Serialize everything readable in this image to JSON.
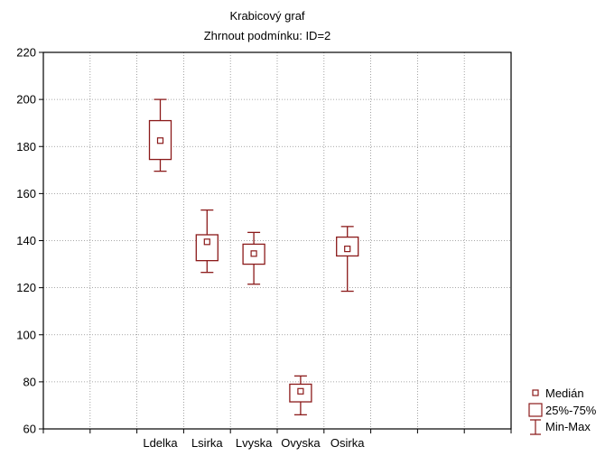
{
  "chart_data": {
    "type": "boxplot",
    "title": "Krabicový graf",
    "subtitle": "Zhrnout podmínku: ID=2",
    "xlabel": "",
    "ylabel": "",
    "ylim": [
      60,
      220
    ],
    "yticks": [
      60,
      80,
      100,
      120,
      140,
      160,
      180,
      200,
      220
    ],
    "grid": true,
    "categories": [
      "Ldelka",
      "Lsirka",
      "Lvyska",
      "Ovyska",
      "Osirka"
    ],
    "boxes": [
      {
        "category": "Ldelka",
        "min": 169.5,
        "q1": 174.5,
        "median": 182.5,
        "q3": 191,
        "max": 200
      },
      {
        "category": "Lsirka",
        "min": 126.5,
        "q1": 131.5,
        "median": 139.5,
        "q3": 142.5,
        "max": 153
      },
      {
        "category": "Lvyska",
        "min": 121.5,
        "q1": 130,
        "median": 134.5,
        "q3": 138.5,
        "max": 143.5
      },
      {
        "category": "Ovyska",
        "min": 66,
        "q1": 71.5,
        "median": 76,
        "q3": 79,
        "max": 82.5
      },
      {
        "category": "Osirka",
        "min": 118.5,
        "q1": 133.5,
        "median": 136.5,
        "q3": 141.5,
        "max": 146
      }
    ],
    "legend": {
      "placement": "bottom-right",
      "items": [
        {
          "label": "Medián",
          "symbol": "median-square-icon"
        },
        {
          "label": "25%-75%",
          "symbol": "box-icon"
        },
        {
          "label": "Min-Max",
          "symbol": "whisker-icon"
        }
      ]
    },
    "color": "#8b1a1a"
  }
}
